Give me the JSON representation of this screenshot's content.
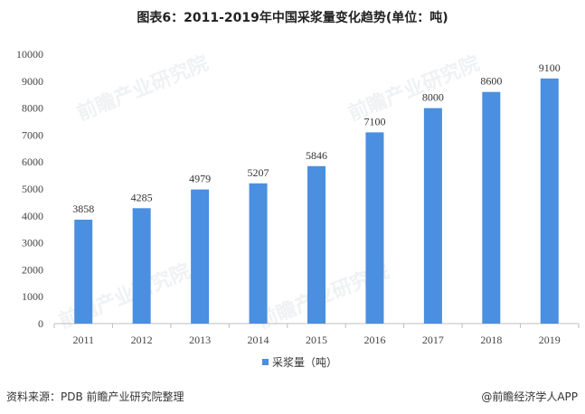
{
  "chart_data": {
    "type": "bar",
    "title": "图表6：2011-2019年中国采浆量变化趋势(单位：吨)",
    "categories": [
      "2011",
      "2012",
      "2013",
      "2014",
      "2015",
      "2016",
      "2017",
      "2018",
      "2019"
    ],
    "series": [
      {
        "name": "采浆量（吨）",
        "values": [
          3858,
          4285,
          4979,
          5207,
          5846,
          7100,
          8000,
          8600,
          9100
        ]
      }
    ],
    "data_labels": [
      "3858",
      "4285",
      "4979",
      "5207",
      "5846",
      "7100",
      "8000",
      "8600",
      "9100"
    ],
    "y_ticks": [
      "0",
      "1000",
      "2000",
      "3000",
      "4000",
      "5000",
      "6000",
      "7000",
      "8000",
      "9000",
      "10000"
    ],
    "ylim": [
      0,
      10000
    ],
    "xlabel": "",
    "ylabel": "",
    "legend_position": "bottom-center",
    "bar_color": "#4a8fe0"
  },
  "footer": {
    "source": "资料来源：PDB 前瞻产业研究院整理",
    "brand": "@前瞻经济学人APP"
  },
  "watermark": {
    "text": "前瞻产业研究院"
  }
}
